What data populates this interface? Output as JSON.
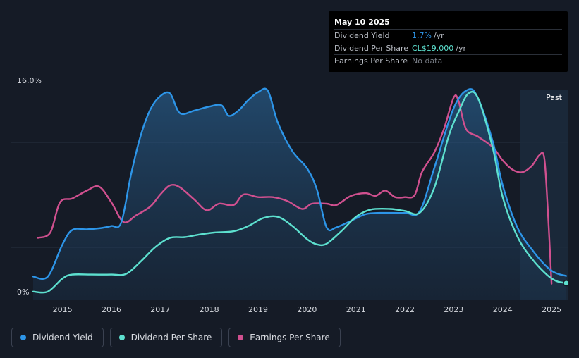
{
  "tooltip": {
    "date": "May 10 2025",
    "rows": [
      {
        "label": "Dividend Yield",
        "value": "1.7%",
        "unit": "/yr",
        "color": "#2d95e8"
      },
      {
        "label": "Dividend Per Share",
        "value": "CL$19.000",
        "unit": "/yr",
        "color": "#5de0cf"
      },
      {
        "label": "Earnings Per Share",
        "value": "No data",
        "unit": "",
        "color": "#7a7f88"
      }
    ]
  },
  "past_label": "Past",
  "legend": [
    {
      "label": "Dividend Yield",
      "color": "#2d95e8"
    },
    {
      "label": "Dividend Per Share",
      "color": "#5de0cf"
    },
    {
      "label": "Earnings Per Share",
      "color": "#d0508f"
    }
  ],
  "chart_data": {
    "type": "line",
    "y_axis_labels": [
      "16.0%",
      "0%"
    ],
    "ylim": [
      0,
      16
    ],
    "xlim": [
      2014.4,
      2025.33
    ],
    "x_ticks": [
      "2015",
      "2016",
      "2017",
      "2018",
      "2019",
      "2020",
      "2021",
      "2022",
      "2023",
      "2024",
      "2025"
    ],
    "past_region_start": 2024.35,
    "series": [
      {
        "name": "Dividend Yield",
        "color": "#2d95e8",
        "points": [
          [
            2014.4,
            1.75
          ],
          [
            2014.7,
            1.75
          ],
          [
            2015.0,
            4.2
          ],
          [
            2015.2,
            5.3
          ],
          [
            2015.5,
            5.35
          ],
          [
            2015.8,
            5.45
          ],
          [
            2016.0,
            5.6
          ],
          [
            2016.2,
            5.85
          ],
          [
            2016.4,
            9.5
          ],
          [
            2016.6,
            12.5
          ],
          [
            2016.8,
            14.5
          ],
          [
            2017.0,
            15.5
          ],
          [
            2017.2,
            15.7
          ],
          [
            2017.4,
            14.2
          ],
          [
            2017.7,
            14.4
          ],
          [
            2018.0,
            14.7
          ],
          [
            2018.25,
            14.8
          ],
          [
            2018.4,
            14.0
          ],
          [
            2018.6,
            14.4
          ],
          [
            2018.8,
            15.2
          ],
          [
            2019.0,
            15.8
          ],
          [
            2019.2,
            15.9
          ],
          [
            2019.4,
            13.5
          ],
          [
            2019.7,
            11.3
          ],
          [
            2020.0,
            10.0
          ],
          [
            2020.2,
            8.4
          ],
          [
            2020.4,
            5.5
          ],
          [
            2020.6,
            5.5
          ],
          [
            2020.9,
            6.0
          ],
          [
            2021.2,
            6.5
          ],
          [
            2021.5,
            6.6
          ],
          [
            2022.0,
            6.6
          ],
          [
            2022.3,
            6.7
          ],
          [
            2022.6,
            10.0
          ],
          [
            2023.0,
            14.6
          ],
          [
            2023.3,
            16.0
          ],
          [
            2023.5,
            15.3
          ],
          [
            2023.8,
            12.0
          ],
          [
            2024.0,
            8.7
          ],
          [
            2024.3,
            5.5
          ],
          [
            2024.6,
            3.8
          ],
          [
            2024.9,
            2.5
          ],
          [
            2025.1,
            2.0
          ],
          [
            2025.3,
            1.8
          ]
        ]
      },
      {
        "name": "Dividend Per Share",
        "color": "#5de0cf",
        "points": [
          [
            2014.4,
            0.6
          ],
          [
            2014.7,
            0.6
          ],
          [
            2015.0,
            1.6
          ],
          [
            2015.2,
            1.9
          ],
          [
            2015.6,
            1.9
          ],
          [
            2016.0,
            1.9
          ],
          [
            2016.3,
            1.95
          ],
          [
            2016.6,
            2.9
          ],
          [
            2016.9,
            4.0
          ],
          [
            2017.2,
            4.7
          ],
          [
            2017.5,
            4.75
          ],
          [
            2017.8,
            4.95
          ],
          [
            2018.1,
            5.1
          ],
          [
            2018.5,
            5.2
          ],
          [
            2018.8,
            5.6
          ],
          [
            2019.1,
            6.2
          ],
          [
            2019.4,
            6.3
          ],
          [
            2019.7,
            5.6
          ],
          [
            2020.0,
            4.6
          ],
          [
            2020.2,
            4.2
          ],
          [
            2020.4,
            4.25
          ],
          [
            2020.7,
            5.2
          ],
          [
            2021.0,
            6.3
          ],
          [
            2021.3,
            6.85
          ],
          [
            2021.7,
            6.9
          ],
          [
            2022.0,
            6.75
          ],
          [
            2022.3,
            6.6
          ],
          [
            2022.6,
            8.5
          ],
          [
            2022.9,
            12.5
          ],
          [
            2023.1,
            14.3
          ],
          [
            2023.3,
            15.7
          ],
          [
            2023.5,
            15.3
          ],
          [
            2023.8,
            11.5
          ],
          [
            2024.0,
            7.8
          ],
          [
            2024.3,
            4.8
          ],
          [
            2024.6,
            3.1
          ],
          [
            2024.9,
            1.9
          ],
          [
            2025.1,
            1.4
          ],
          [
            2025.3,
            1.25
          ]
        ]
      },
      {
        "name": "Earnings Per Share",
        "color": "#d0508f",
        "points": [
          [
            2014.5,
            4.7
          ],
          [
            2014.75,
            5.1
          ],
          [
            2014.95,
            7.4
          ],
          [
            2015.2,
            7.7
          ],
          [
            2015.5,
            8.3
          ],
          [
            2015.75,
            8.6
          ],
          [
            2016.0,
            7.4
          ],
          [
            2016.25,
            5.9
          ],
          [
            2016.5,
            6.4
          ],
          [
            2016.8,
            7.1
          ],
          [
            2017.0,
            8.0
          ],
          [
            2017.2,
            8.7
          ],
          [
            2017.4,
            8.55
          ],
          [
            2017.7,
            7.6
          ],
          [
            2017.95,
            6.8
          ],
          [
            2018.2,
            7.3
          ],
          [
            2018.5,
            7.2
          ],
          [
            2018.7,
            8.0
          ],
          [
            2019.0,
            7.8
          ],
          [
            2019.3,
            7.8
          ],
          [
            2019.6,
            7.5
          ],
          [
            2019.9,
            6.9
          ],
          [
            2020.1,
            7.3
          ],
          [
            2020.4,
            7.3
          ],
          [
            2020.6,
            7.2
          ],
          [
            2020.9,
            7.9
          ],
          [
            2021.2,
            8.1
          ],
          [
            2021.4,
            7.9
          ],
          [
            2021.6,
            8.3
          ],
          [
            2021.8,
            7.8
          ],
          [
            2022.0,
            7.8
          ],
          [
            2022.2,
            7.95
          ],
          [
            2022.35,
            9.7
          ],
          [
            2022.6,
            11.2
          ],
          [
            2022.8,
            13.0
          ],
          [
            2023.0,
            15.4
          ],
          [
            2023.1,
            15.1
          ],
          [
            2023.25,
            13.0
          ],
          [
            2023.5,
            12.4
          ],
          [
            2023.8,
            11.6
          ],
          [
            2024.0,
            10.6
          ],
          [
            2024.2,
            9.9
          ],
          [
            2024.4,
            9.7
          ],
          [
            2024.6,
            10.2
          ],
          [
            2024.75,
            11.0
          ],
          [
            2024.85,
            10.8
          ],
          [
            2024.92,
            7.0
          ],
          [
            2025.0,
            1.2
          ]
        ]
      }
    ]
  }
}
